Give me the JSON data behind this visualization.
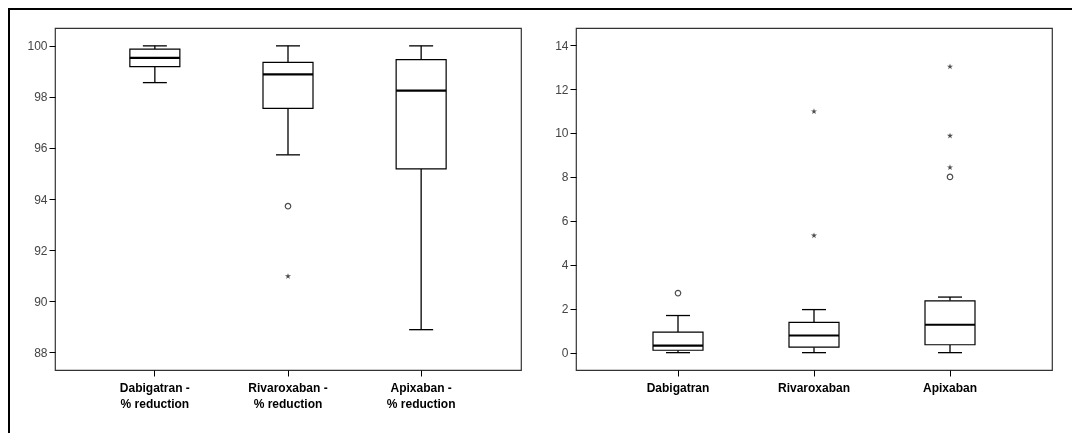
{
  "chart_data": [
    {
      "type": "box",
      "categories": [
        "Dabigatran - % reduction",
        "Rivaroxaban - % reduction",
        "Apixaban - % reduction"
      ],
      "ylim": [
        87.3,
        100.7
      ],
      "yticks": [
        88,
        90,
        92,
        94,
        96,
        98,
        100
      ],
      "grid": false,
      "color": "#000000",
      "boxes": [
        {
          "low": 98.56,
          "q1": 99.19,
          "median": 99.53,
          "q3": 99.87,
          "high": 100
        },
        {
          "low": 95.73,
          "q1": 97.55,
          "median": 98.88,
          "q3": 99.35,
          "high": 100,
          "outliers": [
            93.72
          ]
        },
        {
          "low": 88.88,
          "q1": 95.18,
          "median": 98.25,
          "q3": 99.46,
          "high": 100
        }
      ],
      "series": [
        {
          "type": "scatter",
          "marker": "star",
          "color": "#000000",
          "x": [
            "Rivaroxaban - % reduction"
          ],
          "values": [
            90.97
          ]
        }
      ]
    },
    {
      "type": "box",
      "categories": [
        "Dabigatran",
        "Rivaroxaban",
        "Apixaban"
      ],
      "ylim": [
        -0.79,
        14.78
      ],
      "yticks": [
        0,
        2,
        4,
        6,
        8,
        10,
        12,
        14
      ],
      "grid": false,
      "color": "#000000",
      "boxes": [
        {
          "low": 0,
          "q1": 0.11,
          "median": 0.32,
          "q3": 0.93,
          "high": 1.69,
          "outliers": [
            2.71
          ]
        },
        {
          "low": 0,
          "q1": 0.25,
          "median": 0.78,
          "q3": 1.38,
          "high": 1.96
        },
        {
          "low": 0,
          "q1": 0.36,
          "median": 1.27,
          "q3": 2.36,
          "high": 2.53,
          "outliers": [
            8.0
          ]
        }
      ],
      "series": [
        {
          "type": "scatter",
          "marker": "star",
          "color": "#000000",
          "x": [
            "Rivaroxaban",
            "Rivaroxaban",
            "Apixaban",
            "Apixaban",
            "Apixaban"
          ],
          "values": [
            5.33,
            10.98,
            8.43,
            9.87,
            13.02
          ]
        }
      ]
    }
  ]
}
